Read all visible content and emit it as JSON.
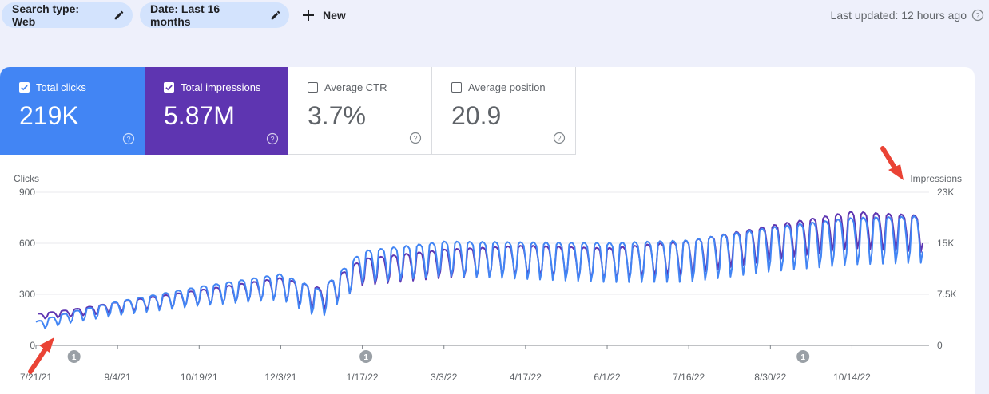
{
  "filters": {
    "search_type": "Search type: Web",
    "date": "Date: Last 16 months",
    "new_label": "New"
  },
  "last_updated": "Last updated: 12 hours ago",
  "metrics": [
    {
      "label": "Total clicks",
      "value": "219K",
      "checked": true
    },
    {
      "label": "Total impressions",
      "value": "5.87M",
      "checked": true
    },
    {
      "label": "Average CTR",
      "value": "3.7%",
      "checked": false
    },
    {
      "label": "Average position",
      "value": "20.9",
      "checked": false
    }
  ],
  "colors": {
    "clicks": "#4285f4",
    "impressions": "#5e35b1",
    "annotation": "#ea4335"
  },
  "chart_data": {
    "type": "line",
    "left_axis_title": "Clicks",
    "right_axis_title": "Impressions",
    "left_ticks": [
      "900",
      "600",
      "300",
      "0"
    ],
    "right_ticks": [
      "23K",
      "15K",
      "7.5K",
      "0"
    ],
    "left_max": 900,
    "right_max": 23000,
    "x_ticks": [
      "7/21/21",
      "9/4/21",
      "10/19/21",
      "12/3/21",
      "1/17/22",
      "3/3/22",
      "4/17/22",
      "6/1/22",
      "7/16/22",
      "8/30/22",
      "10/14/22"
    ],
    "annotation_markers": [
      {
        "label": "1",
        "date": "8/11/21"
      },
      {
        "label": "1",
        "date": "1/19/22"
      },
      {
        "label": "1",
        "date": "9/17/22"
      }
    ],
    "series": [
      {
        "name": "Clicks",
        "axis": "left",
        "date_range": [
          "7/21/21",
          "11/22/22"
        ],
        "base_points": [
          [
            "7/21/21",
            120
          ],
          [
            "8/11/21",
            175
          ],
          [
            "9/4/21",
            225
          ],
          [
            "10/19/21",
            300
          ],
          [
            "12/3/21",
            360
          ],
          [
            "12/25/21",
            260
          ],
          [
            "1/17/22",
            480
          ],
          [
            "3/3/22",
            530
          ],
          [
            "4/17/22",
            520
          ],
          [
            "6/1/22",
            510
          ],
          [
            "7/16/22",
            520
          ],
          [
            "8/30/22",
            590
          ],
          [
            "10/14/22",
            640
          ],
          [
            "11/22/22",
            650
          ]
        ],
        "weekly_amplitude": [
          [
            "7/21/21",
            20
          ],
          [
            "10/19/21",
            45
          ],
          [
            "1/17/22",
            75
          ],
          [
            "10/14/22",
            110
          ]
        ]
      },
      {
        "name": "Impressions",
        "axis": "right",
        "date_range": [
          "7/22/21",
          "11/22/22"
        ],
        "base_points": [
          [
            "7/21/21",
            4400
          ],
          [
            "8/11/21",
            5000
          ],
          [
            "9/4/21",
            5900
          ],
          [
            "10/19/21",
            7400
          ],
          [
            "12/3/21",
            8900
          ],
          [
            "12/25/21",
            7200
          ],
          [
            "1/17/22",
            11400
          ],
          [
            "3/3/22",
            12700
          ],
          [
            "4/17/22",
            13200
          ],
          [
            "6/1/22",
            12700
          ],
          [
            "7/16/22",
            13700
          ],
          [
            "8/30/22",
            15900
          ],
          [
            "10/14/22",
            17900
          ],
          [
            "11/22/22",
            17300
          ]
        ],
        "weekly_amplitude": [
          [
            "7/21/21",
            300
          ],
          [
            "10/19/21",
            900
          ],
          [
            "1/17/22",
            1600
          ],
          [
            "10/14/22",
            2200
          ]
        ]
      }
    ]
  }
}
